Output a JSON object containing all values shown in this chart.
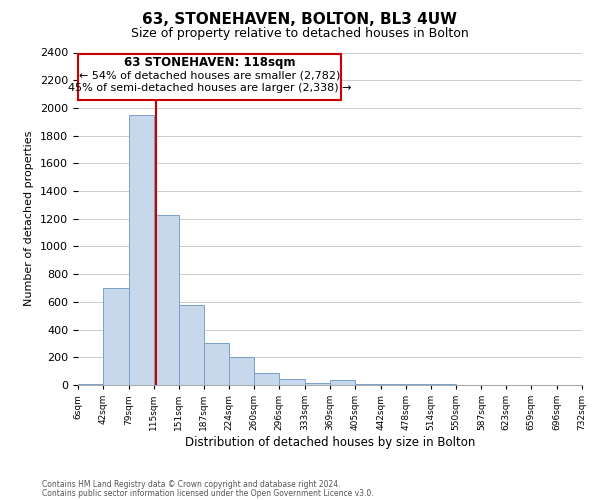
{
  "title": "63, STONEHAVEN, BOLTON, BL3 4UW",
  "subtitle": "Size of property relative to detached houses in Bolton",
  "xlabel": "Distribution of detached houses by size in Bolton",
  "ylabel": "Number of detached properties",
  "footnote1": "Contains HM Land Registry data © Crown copyright and database right 2024.",
  "footnote2": "Contains public sector information licensed under the Open Government Licence v3.0.",
  "bar_edges": [
    6,
    42,
    79,
    115,
    151,
    187,
    224,
    260,
    296,
    333,
    369,
    405,
    442,
    478,
    514,
    550,
    587,
    623,
    659,
    696,
    732
  ],
  "bar_heights": [
    10,
    700,
    1950,
    1230,
    575,
    300,
    200,
    85,
    45,
    15,
    35,
    5,
    10,
    5,
    5,
    0,
    0,
    0,
    0,
    0
  ],
  "bar_color": "#c8d8ec",
  "bar_edgecolor": "#7aA0c8",
  "tick_labels": [
    "6sqm",
    "42sqm",
    "79sqm",
    "115sqm",
    "151sqm",
    "187sqm",
    "224sqm",
    "260sqm",
    "296sqm",
    "333sqm",
    "369sqm",
    "405sqm",
    "442sqm",
    "478sqm",
    "514sqm",
    "550sqm",
    "587sqm",
    "623sqm",
    "659sqm",
    "696sqm",
    "732sqm"
  ],
  "ylim": [
    0,
    2400
  ],
  "yticks": [
    0,
    200,
    400,
    600,
    800,
    1000,
    1200,
    1400,
    1600,
    1800,
    2000,
    2200,
    2400
  ],
  "property_line_x": 118,
  "property_label": "63 STONEHAVEN: 118sqm",
  "annotation_line1": "← 54% of detached houses are smaller (2,782)",
  "annotation_line2": "45% of semi-detached houses are larger (2,338) →",
  "line_color": "#cc0000",
  "box_edgecolor": "#cc0000",
  "background_color": "#ffffff",
  "grid_color": "#cccccc"
}
